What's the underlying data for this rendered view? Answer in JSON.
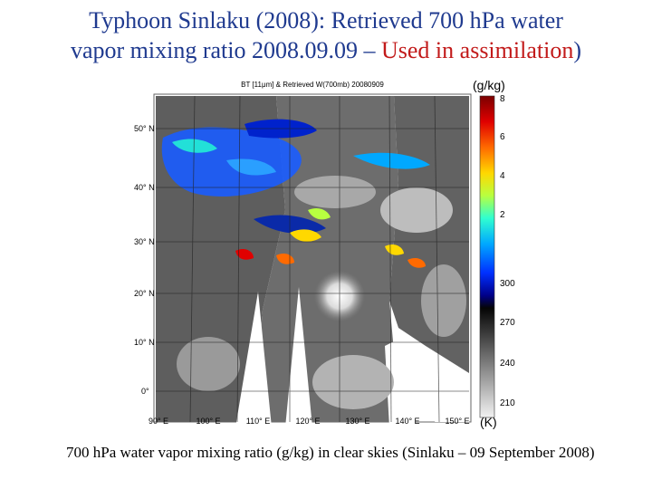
{
  "title": {
    "line1": "Typhoon Sinlaku (2008): Retrieved 700 hPa water",
    "line2_prefix": "vapor mixing ratio 2008.09.09 – ",
    "line2_highlight": "Used in assimilation",
    "line2_suffix": ")",
    "highlight_color": "#c21a1a"
  },
  "map": {
    "inner_title": "BT [11μm] & Retrieved W(700mb) 20080909",
    "lat_labels": [
      "50° N",
      "40° N",
      "30° N",
      "20° N",
      "10° N",
      "0°"
    ],
    "lon_labels": [
      "90° E",
      "100° E",
      "110° E",
      "120° E",
      "130° E",
      "140° E",
      "150° E"
    ]
  },
  "colorbar": {
    "top_unit": "(g/kg)",
    "bottom_unit": "(K)",
    "wv_ticks": [
      "8",
      "6",
      "4",
      "2"
    ],
    "bt_ticks": [
      "300",
      "270",
      "240",
      "210"
    ]
  },
  "caption": "700 hPa water vapor mixing ratio (g/kg) in clear skies (Sinlaku – 09 September 2008)"
}
